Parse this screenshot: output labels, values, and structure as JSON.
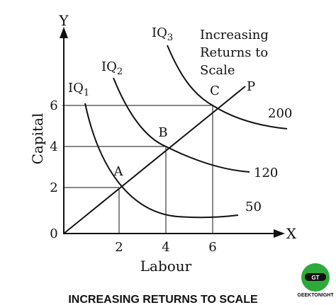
{
  "axes": {
    "y_label": "Y",
    "x_label": "X",
    "y_title": "Capital",
    "x_title": "Labour",
    "origin": "0",
    "x_ticks": [
      "2",
      "4",
      "6"
    ],
    "y_ticks": [
      "2",
      "4",
      "6"
    ]
  },
  "points": [
    {
      "label": "A"
    },
    {
      "label": "B"
    },
    {
      "label": "C"
    }
  ],
  "ray_label": "P",
  "isoquants": [
    {
      "name": "IQ",
      "index": "1",
      "output": "50"
    },
    {
      "name": "IQ",
      "index": "2",
      "output": "120"
    },
    {
      "name": "IQ",
      "index": "3",
      "output": "200"
    }
  ],
  "annotation": [
    "Increasing",
    "Returns to",
    "Scale"
  ],
  "caption": "INCREASING RETURNS TO SCALE",
  "logo": {
    "top": "GT",
    "name": "GEEKTONIGHT"
  }
}
